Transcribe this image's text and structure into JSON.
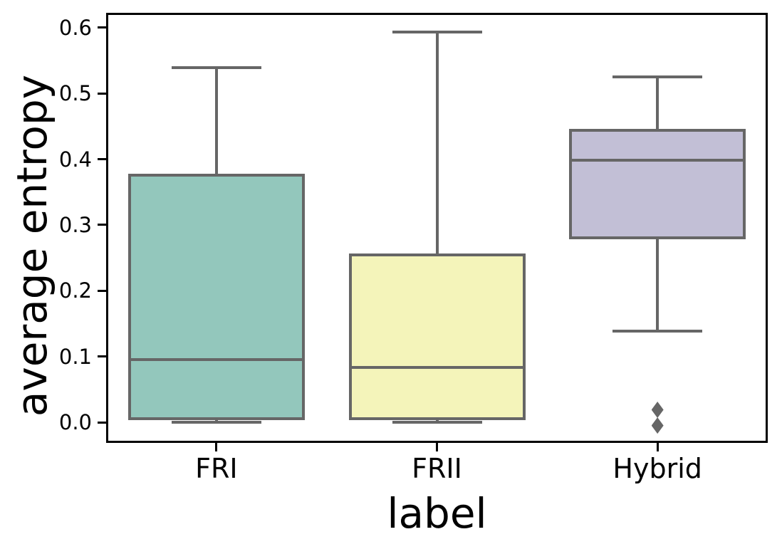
{
  "chart_data": {
    "type": "boxplot",
    "title": "",
    "xlabel": "label",
    "ylabel": "average entropy",
    "categories": [
      "FRI",
      "FRII",
      "Hybrid"
    ],
    "y_ticks": [
      0.0,
      0.1,
      0.2,
      0.3,
      0.4,
      0.5,
      0.6
    ],
    "y_tick_labels": [
      "0.0",
      "0.1",
      "0.2",
      "0.3",
      "0.4",
      "0.5",
      "0.6"
    ],
    "ylim": [
      -0.0314,
      0.6227
    ],
    "grid": false,
    "legend": "none",
    "colors": {
      "box_fills": [
        "#93c7bc",
        "#f4f4ba",
        "#c2bfd6"
      ],
      "box_line": "#666666",
      "axis_line": "#000000",
      "text": "#000000",
      "background": "#ffffff"
    },
    "series": [
      {
        "label": "FRI",
        "whisker_low": 0.0,
        "q1": 0.005,
        "median": 0.095,
        "q3": 0.376,
        "whisker_high": 0.539,
        "outliers": []
      },
      {
        "label": "FRII",
        "whisker_low": 0.0,
        "q1": 0.005,
        "median": 0.083,
        "q3": 0.254,
        "whisker_high": 0.593,
        "outliers": []
      },
      {
        "label": "Hybrid",
        "whisker_low": 0.139,
        "q1": 0.281,
        "median": 0.398,
        "q3": 0.444,
        "whisker_high": 0.525,
        "outliers": [
          0.019,
          -0.005
        ]
      }
    ]
  }
}
